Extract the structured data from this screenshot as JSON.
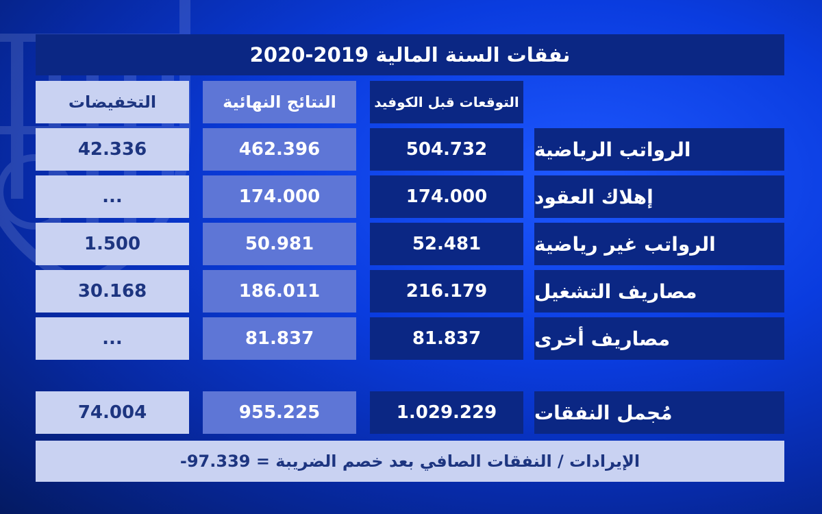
{
  "title": "نفقات السنة المالية 2019-2020",
  "headers": {
    "pre_covid": "التوقعات قبل الكوفيد",
    "final_results": "النتائج النهائية",
    "reductions": "التخفيضات"
  },
  "rows": [
    {
      "label": "الرواتب الرياضية",
      "pre_covid": "504.732",
      "final": "462.396",
      "reduction": "42.336"
    },
    {
      "label": "إهلاك العقود",
      "pre_covid": "174.000",
      "final": "174.000",
      "reduction": "..."
    },
    {
      "label": "الرواتب غير رياضية",
      "pre_covid": "52.481",
      "final": "50.981",
      "reduction": "1.500"
    },
    {
      "label": "مصاريف التشغيل",
      "pre_covid": "216.179",
      "final": "186.011",
      "reduction": "30.168"
    },
    {
      "label": "مصاريف أخرى",
      "pre_covid": "81.837",
      "final": "81.837",
      "reduction": "..."
    }
  ],
  "total": {
    "label": "مُجمل النفقات",
    "pre_covid": "1.029.229",
    "final": "955.225",
    "reduction": "74.004"
  },
  "footer": "الإيرادات / النفقات الصافي بعد خصم الضريبة = 97.339-",
  "colors": {
    "dark_cell": "#0b2784",
    "mid_cell": "#5e76d6",
    "light_cell": "#c9d2f2",
    "light_text": "#1d3580",
    "background": "#0a3cdf"
  }
}
